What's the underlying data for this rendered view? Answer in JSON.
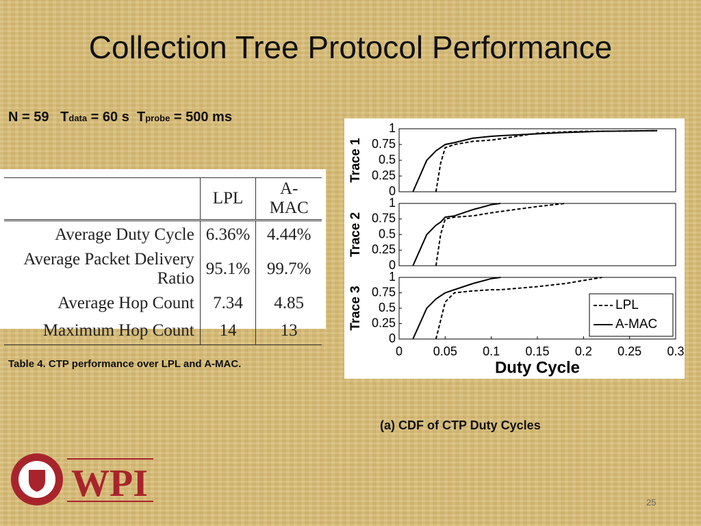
{
  "title": "Collection Tree Protocol Performance",
  "parameters": {
    "n": "N = 59",
    "t_data_symbol": "T",
    "t_data_sub": "data",
    "t_data_value": "= 60 s",
    "t_probe_symbol": "T",
    "t_probe_sub": "probe",
    "t_probe_value": "= 500 ms"
  },
  "table": {
    "header": [
      "",
      "LPL",
      "A-MAC"
    ],
    "rows": [
      [
        "Average Duty Cycle",
        "6.36%",
        "4.44%"
      ],
      [
        "Average Packet Delivery Ratio",
        "95.1%",
        "99.7%"
      ],
      [
        "Average Hop Count",
        "7.34",
        "4.85"
      ],
      [
        "Maximum Hop Count",
        "14",
        "13"
      ]
    ]
  },
  "table_caption": "Table 4.  CTP performance over LPL and A-MAC.",
  "figure_caption": "(a) CDF of CTP Duty Cycles",
  "logo_text": "WPI",
  "page_number": "25",
  "chart_data": [
    {
      "type": "line",
      "ylabel": "Trace 1",
      "xlim": [
        0,
        0.3
      ],
      "ylim": [
        0,
        1
      ],
      "yticks": [
        0,
        0.25,
        0.5,
        0.75,
        1
      ],
      "x": [
        0.015,
        0.03,
        0.04,
        0.045,
        0.05,
        0.06,
        0.08,
        0.1,
        0.11,
        0.15,
        0.18,
        0.2,
        0.22,
        0.28
      ],
      "series": [
        {
          "name": "LPL",
          "color": "#000000",
          "style": "dashed",
          "values": [
            null,
            null,
            0,
            0.45,
            0.7,
            0.75,
            0.8,
            0.82,
            0.84,
            0.93,
            0.95,
            0.96,
            0.96,
            0.97
          ]
        },
        {
          "name": "A-MAC",
          "color": "#000000",
          "style": "solid",
          "values": [
            0,
            0.5,
            0.65,
            0.7,
            0.75,
            0.78,
            0.85,
            0.88,
            0.89,
            0.92,
            0.94,
            0.95,
            0.96,
            0.97
          ]
        }
      ]
    },
    {
      "type": "line",
      "ylabel": "Trace 2",
      "xlim": [
        0,
        0.3
      ],
      "ylim": [
        0,
        1
      ],
      "yticks": [
        0,
        0.25,
        0.5,
        0.75,
        1
      ],
      "x": [
        0.015,
        0.03,
        0.04,
        0.045,
        0.05,
        0.06,
        0.08,
        0.1,
        0.11,
        0.15,
        0.18,
        0.2,
        0.22,
        0.28
      ],
      "series": [
        {
          "name": "LPL",
          "color": "#000000",
          "style": "dashed",
          "values": [
            null,
            null,
            0,
            0.5,
            0.75,
            0.78,
            0.8,
            0.85,
            0.87,
            0.95,
            1,
            null,
            null,
            null
          ]
        },
        {
          "name": "A-MAC",
          "color": "#000000",
          "style": "solid",
          "values": [
            0,
            0.5,
            0.65,
            0.7,
            0.78,
            0.8,
            0.9,
            0.98,
            1,
            null,
            null,
            null,
            null,
            null
          ]
        }
      ]
    },
    {
      "type": "line",
      "ylabel": "Trace 3",
      "xlabel": "Duty Cycle",
      "xlim": [
        0,
        0.3
      ],
      "ylim": [
        0,
        1
      ],
      "yticks": [
        0,
        0.25,
        0.5,
        0.75,
        1
      ],
      "xticks": [
        0,
        0.05,
        0.1,
        0.15,
        0.2,
        0.25,
        0.3
      ],
      "legend": "lower right",
      "x": [
        0.015,
        0.03,
        0.04,
        0.045,
        0.05,
        0.06,
        0.08,
        0.1,
        0.11,
        0.15,
        0.18,
        0.2,
        0.22,
        0.28
      ],
      "series": [
        {
          "name": "LPL",
          "color": "#000000",
          "style": "dashed",
          "values": [
            null,
            null,
            0,
            0.3,
            0.6,
            0.75,
            0.78,
            0.8,
            0.8,
            0.85,
            0.9,
            0.95,
            1,
            null
          ]
        },
        {
          "name": "A-MAC",
          "color": "#000000",
          "style": "solid",
          "values": [
            0,
            0.5,
            0.65,
            0.7,
            0.75,
            0.8,
            0.9,
            0.98,
            1,
            null,
            null,
            null,
            null,
            null
          ]
        }
      ]
    }
  ]
}
